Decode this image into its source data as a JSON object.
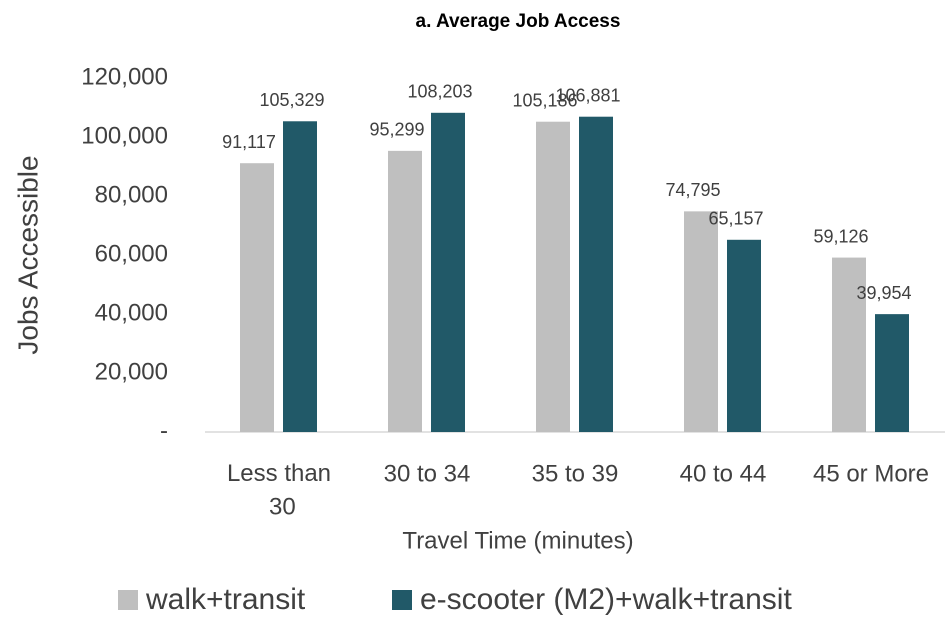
{
  "chart_data": {
    "type": "bar",
    "title": "a. Average Job Access",
    "x_label": "Travel Time (minutes)",
    "y_label": "Jobs Accessible",
    "categories": [
      "Less than 30",
      "30 to 34",
      "35 to 39",
      "40 to 44",
      "45 or More"
    ],
    "series": [
      {
        "name": "walk+transit",
        "color": "#bfbfbf",
        "values": [
          91117,
          95299,
          105186,
          74795,
          59126
        ],
        "value_labels": [
          "91,117",
          "95,299",
          "105,186",
          "74,795",
          "59,126"
        ]
      },
      {
        "name": "e-scooter (M2)+walk+transit",
        "color": "#215968",
        "values": [
          105329,
          108203,
          106881,
          65157,
          39954
        ],
        "value_labels": [
          "105,329",
          "108,203",
          "106,881",
          "65,157",
          "39,954"
        ]
      }
    ],
    "ylim": [
      0,
      120000
    ],
    "yticks": [
      {
        "value": 0,
        "label": "-"
      },
      {
        "value": 20000,
        "label": "20,000"
      },
      {
        "value": 40000,
        "label": "40,000"
      },
      {
        "value": 60000,
        "label": "60,000"
      },
      {
        "value": 80000,
        "label": "80,000"
      },
      {
        "value": 100000,
        "label": "100,000"
      },
      {
        "value": 120000,
        "label": "120,000"
      }
    ],
    "grid": false,
    "legend": "bottom"
  }
}
